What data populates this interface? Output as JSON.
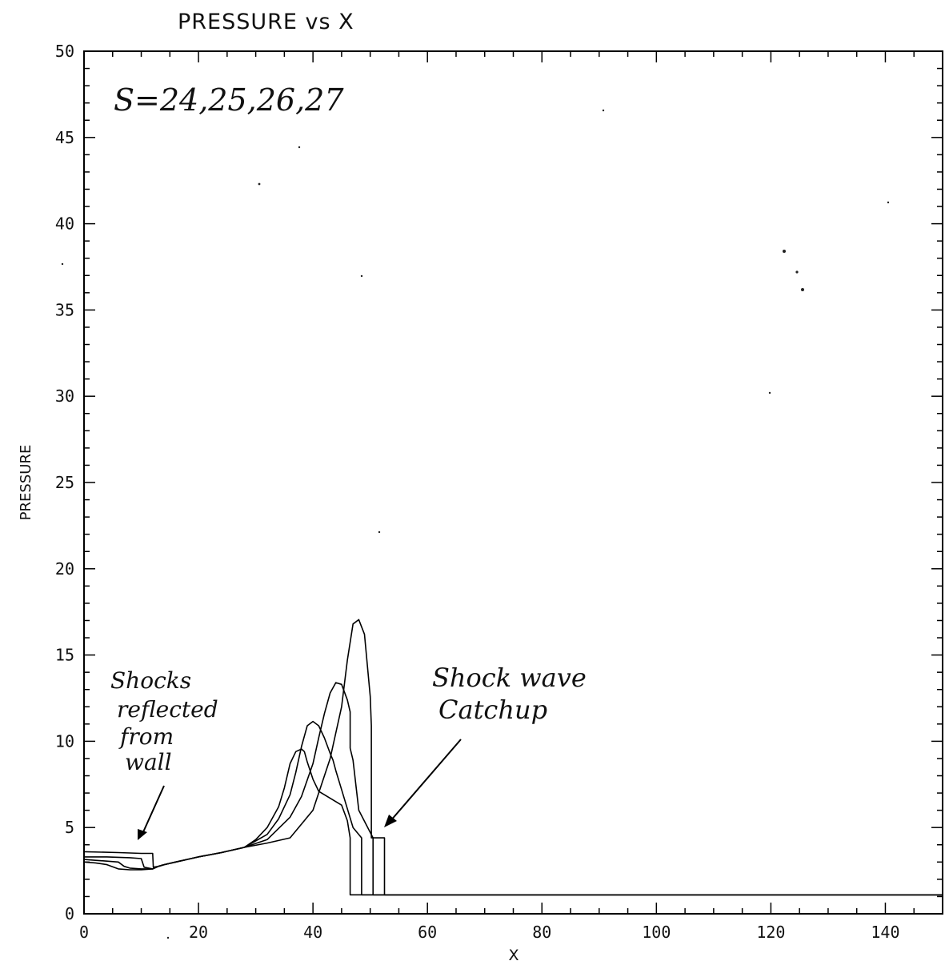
{
  "chart_data": {
    "type": "line",
    "title": "PRESSURE vs X",
    "xlabel": "X",
    "ylabel": "PRESSURE",
    "xlim": [
      0,
      150
    ],
    "ylim": [
      0,
      50
    ],
    "x_ticks": [
      0,
      20,
      40,
      60,
      80,
      100,
      120,
      140
    ],
    "y_ticks": [
      0,
      5,
      10,
      15,
      20,
      25,
      30,
      35,
      40,
      45,
      50
    ],
    "x_tick_labels": [
      "0",
      "20",
      "40",
      "60",
      "80",
      "100",
      "120",
      "140"
    ],
    "y_tick_labels": [
      "0",
      "5",
      "10",
      "15",
      "20",
      "25",
      "30",
      "35",
      "40",
      "45",
      "50"
    ],
    "grid": false,
    "legend": "none",
    "line_color": "#000000",
    "annotation_label": "S=24,25,26,27",
    "annotations": [
      {
        "text": "Shocks reflected from wall",
        "target": [
          10,
          4.2
        ]
      },
      {
        "text": "Shock wave Catchup",
        "target": [
          52,
          4.6
        ]
      }
    ],
    "series": [
      {
        "x": [
          0,
          2,
          4,
          6,
          8,
          10,
          12,
          13,
          14,
          16,
          18,
          20,
          24,
          28,
          30,
          32,
          34,
          35,
          36,
          37,
          38,
          38.5,
          39,
          40,
          41,
          45,
          46,
          46.5,
          46.5,
          150
        ],
        "y": [
          3.0,
          2.95,
          2.85,
          2.6,
          2.55,
          2.55,
          2.6,
          2.75,
          2.85,
          3.0,
          3.15,
          3.3,
          3.55,
          3.85,
          4.3,
          5.0,
          6.2,
          7.3,
          8.7,
          9.4,
          9.55,
          9.4,
          8.8,
          7.8,
          7.1,
          6.3,
          5.4,
          4.4,
          1.1,
          1.1
        ]
      },
      {
        "x": [
          0,
          2,
          4,
          6,
          7,
          8,
          10,
          12,
          13,
          14,
          16,
          18,
          20,
          24,
          28,
          32,
          34,
          36,
          37,
          38,
          39,
          40,
          41,
          42,
          43,
          43.5,
          44,
          45,
          47,
          48.5,
          48.5,
          150
        ],
        "y": [
          3.15,
          3.1,
          3.05,
          3.0,
          2.75,
          2.65,
          2.6,
          2.6,
          2.75,
          2.85,
          3.0,
          3.15,
          3.3,
          3.55,
          3.85,
          4.6,
          5.5,
          6.9,
          8.2,
          9.7,
          10.9,
          11.15,
          10.9,
          10.2,
          9.3,
          8.9,
          8.3,
          7.2,
          5.0,
          4.4,
          1.1,
          1.1
        ]
      },
      {
        "x": [
          0,
          4,
          8,
          10,
          10.5,
          12,
          13,
          14,
          16,
          18,
          20,
          24,
          28,
          32,
          36,
          38,
          40,
          41,
          42,
          43,
          44,
          45,
          46,
          46.5,
          46.5,
          47,
          48,
          50.5,
          50.5,
          150
        ],
        "y": [
          3.3,
          3.3,
          3.25,
          3.2,
          2.7,
          2.6,
          2.75,
          2.85,
          3.0,
          3.15,
          3.3,
          3.55,
          3.85,
          4.3,
          5.6,
          6.8,
          8.7,
          10.2,
          11.6,
          12.8,
          13.4,
          13.3,
          12.4,
          11.7,
          9.6,
          8.9,
          6.0,
          4.4,
          1.1,
          1.1
        ]
      },
      {
        "x": [
          0,
          6,
          10,
          12,
          12.1,
          13,
          14,
          16,
          18,
          20,
          24,
          28,
          32,
          36,
          40,
          43,
          45,
          46,
          47,
          48,
          49,
          50,
          50.2,
          50.2,
          50.4,
          52.5,
          52.5,
          150
        ],
        "y": [
          3.6,
          3.55,
          3.5,
          3.5,
          2.7,
          2.75,
          2.85,
          3.0,
          3.15,
          3.3,
          3.55,
          3.85,
          4.1,
          4.4,
          6.0,
          9.0,
          12.0,
          14.7,
          16.8,
          17.05,
          16.2,
          12.6,
          10.9,
          4.4,
          4.4,
          4.4,
          1.1,
          1.1
        ]
      }
    ]
  }
}
